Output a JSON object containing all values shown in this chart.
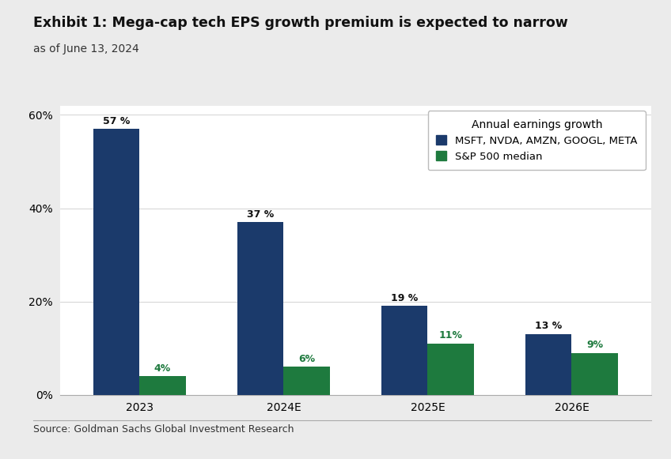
{
  "title": "Exhibit 1: Mega-cap tech EPS growth premium is expected to narrow",
  "subtitle": "as of June 13, 2024",
  "source": "Source: Goldman Sachs Global Investment Research",
  "categories": [
    "2023",
    "2024E",
    "2025E",
    "2026E"
  ],
  "series1_label": "MSFT, NVDA, AMZN, GOOGL, META",
  "series2_label": "S&P 500 median",
  "series1_values": [
    57,
    37,
    19,
    13
  ],
  "series2_values": [
    4,
    6,
    11,
    9
  ],
  "series1_color": "#1B3A6B",
  "series2_color": "#1E7A3E",
  "legend_title": "Annual earnings growth",
  "ylim": [
    0,
    62
  ],
  "yticks": [
    0,
    20,
    40,
    60
  ],
  "ytick_labels": [
    "0%",
    "20%",
    "40%",
    "60%"
  ],
  "bar_width": 0.32,
  "background_color": "#FFFFFF",
  "outer_background": "#EBEBEB",
  "title_fontsize": 12.5,
  "subtitle_fontsize": 10,
  "axis_fontsize": 10,
  "label_fontsize": 9,
  "legend_fontsize": 9.5,
  "source_fontsize": 9
}
